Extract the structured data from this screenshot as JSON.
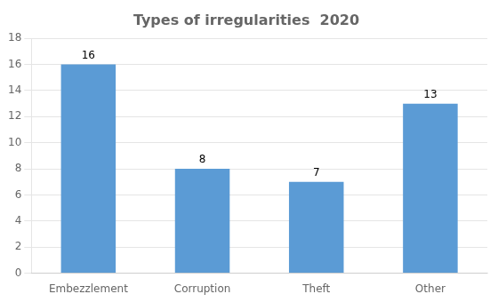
{
  "chart_data": {
    "type": "bar",
    "title": "Types of irregularities  2020",
    "categories": [
      "Embezzlement",
      "Corruption",
      "Theft",
      "Other"
    ],
    "values": [
      16,
      8,
      7,
      13
    ],
    "color": "#5B9BD5",
    "ylim": [
      0,
      18
    ],
    "yticks": [
      0,
      2,
      4,
      6,
      8,
      10,
      12,
      14,
      16,
      18
    ],
    "grid": true,
    "data_labels": true
  }
}
